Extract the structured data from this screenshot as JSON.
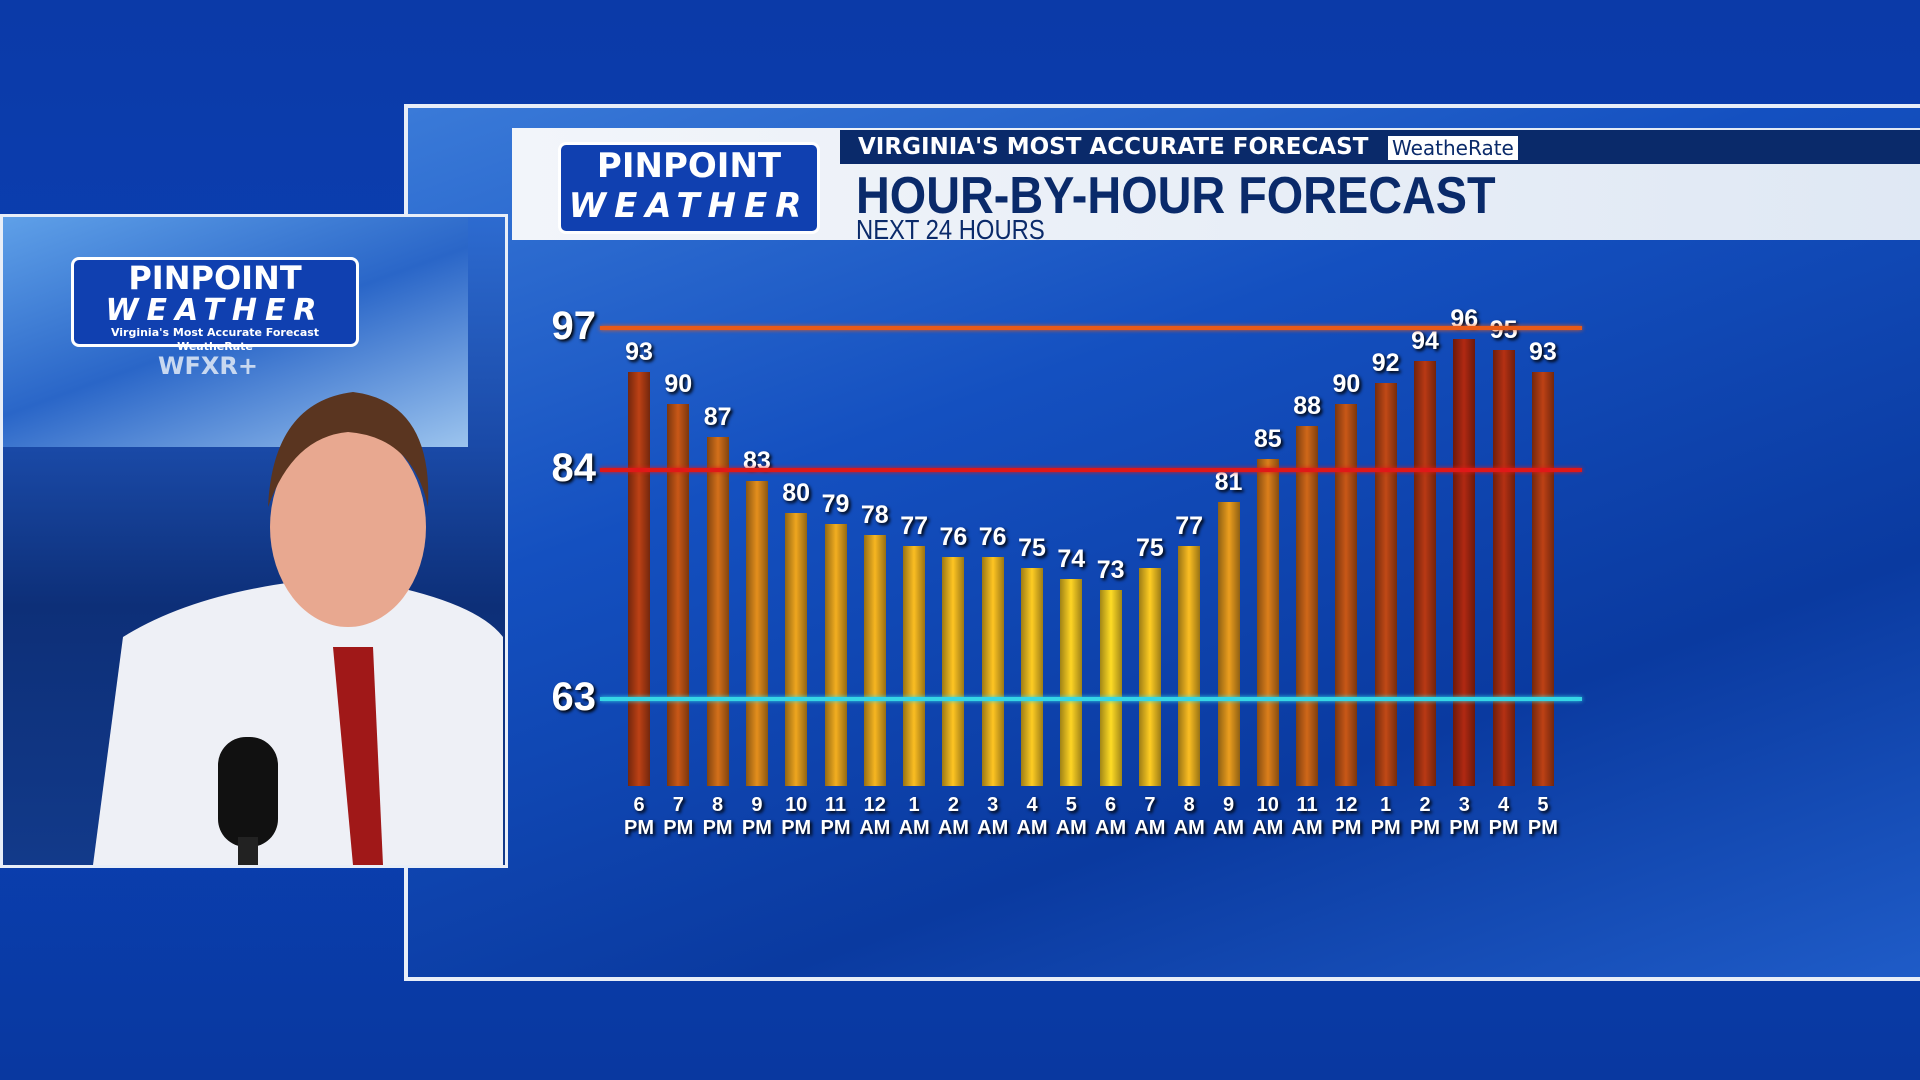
{
  "branding": {
    "logo_top": "PINPOINT",
    "logo_bottom": "WEATHER",
    "tagline": "VIRGINIA'S MOST ACCURATE FORECAST",
    "rating": "WeatheRate",
    "inset_logo_top": "PINPOINT",
    "inset_logo_bottom": "WEATHER",
    "inset_tagline": "Virginia's Most Accurate Forecast",
    "inset_rating": "WeatheRate",
    "station": "WFXR+"
  },
  "chart_data": {
    "type": "bar",
    "title": "HOUR-BY-HOUR FORECAST",
    "subtitle": "NEXT 24 HOURS",
    "categories": [
      "6 PM",
      "7 PM",
      "8 PM",
      "9 PM",
      "10 PM",
      "11 PM",
      "12 AM",
      "1 AM",
      "2 AM",
      "3 AM",
      "4 AM",
      "5 AM",
      "6 AM",
      "7 AM",
      "8 AM",
      "9 AM",
      "10 AM",
      "11 AM",
      "12 PM",
      "1 PM",
      "2 PM",
      "3 PM",
      "4 PM",
      "5 PM"
    ],
    "values": [
      93,
      90,
      87,
      83,
      80,
      79,
      78,
      77,
      76,
      76,
      75,
      74,
      73,
      75,
      77,
      81,
      85,
      88,
      90,
      92,
      94,
      96,
      95,
      93
    ],
    "ylim": [
      55,
      97
    ],
    "yticks": [
      63,
      84,
      97
    ],
    "ytick_colors": [
      "#35d6e6",
      "#e01818",
      "#e85a18"
    ],
    "color_low": "#e8c020",
    "color_high": "#9a2410"
  }
}
